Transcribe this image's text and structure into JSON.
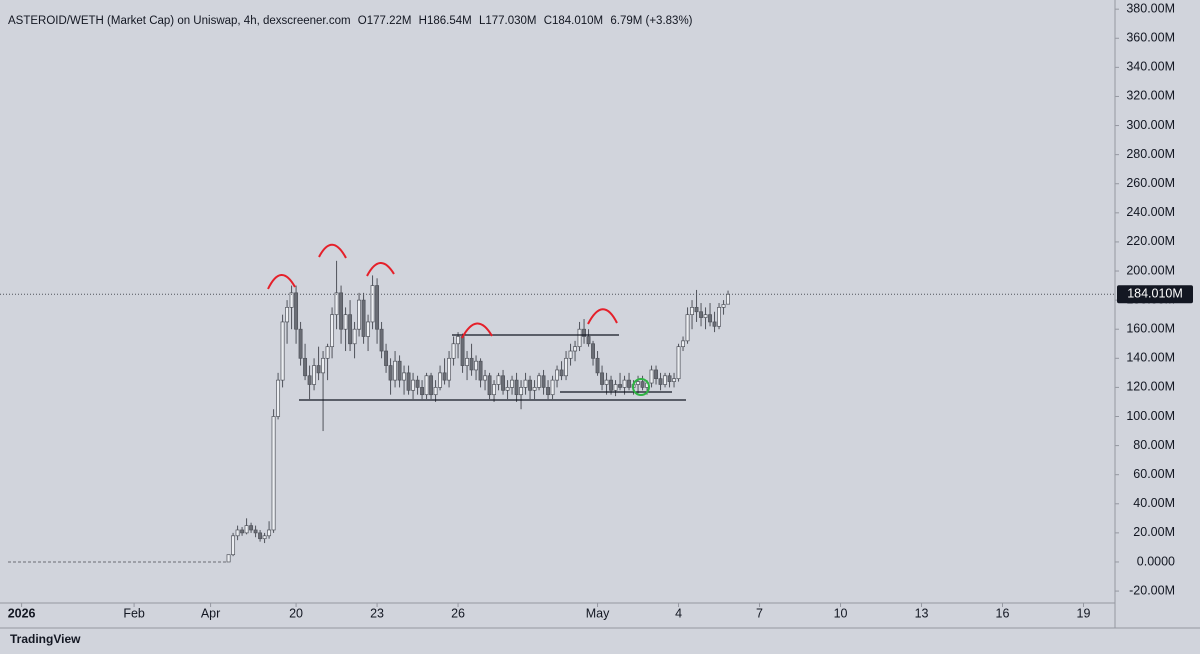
{
  "chart_data": {
    "type": "candlestick",
    "title": "ASTEROID/WETH (Market Cap) on Uniswap, 4h, dexscreener.com",
    "legend_items": [
      "O177.22M",
      "H186.54M",
      "L177.030M",
      "C184.010M",
      "6.79M (+3.83%)"
    ],
    "brand": "TradingView",
    "up_color": "#eceef2",
    "down_color": "#6a6d75",
    "wick_color": "#50535b",
    "last_price": 184.01,
    "last_price_label": "184.010M",
    "xlim": [
      -1.8,
      246
    ],
    "xticks": [
      {
        "value": 3,
        "label": "2026"
      },
      {
        "value": 28,
        "label": "Feb"
      },
      {
        "value": 45,
        "label": "Apr"
      },
      {
        "value": 64,
        "label": "20"
      },
      {
        "value": 82,
        "label": "23"
      },
      {
        "value": 100,
        "label": "26"
      },
      {
        "value": 131,
        "label": "May"
      },
      {
        "value": 149,
        "label": "4"
      },
      {
        "value": 167,
        "label": "7"
      },
      {
        "value": 185,
        "label": "10"
      },
      {
        "value": 203,
        "label": "13"
      },
      {
        "value": 221,
        "label": "16"
      },
      {
        "value": 239,
        "label": "19"
      }
    ],
    "ylim": [
      -28.2,
      386.3
    ],
    "yticks": [
      {
        "value": -20,
        "label": "-20.00M"
      },
      {
        "value": 0,
        "label": "0.0000"
      },
      {
        "value": 20,
        "label": "20.00M"
      },
      {
        "value": 40,
        "label": "40.00M"
      },
      {
        "value": 60,
        "label": "60.00M"
      },
      {
        "value": 80,
        "label": "80.00M"
      },
      {
        "value": 100,
        "label": "100.00M"
      },
      {
        "value": 120,
        "label": "120.00M"
      },
      {
        "value": 140,
        "label": "140.00M"
      },
      {
        "value": 160,
        "label": "160.00M"
      },
      {
        "value": 180,
        "label": "180.00M"
      },
      {
        "value": 200,
        "label": "200.00M"
      },
      {
        "value": 220,
        "label": "220.00M"
      },
      {
        "value": 240,
        "label": "240.00M"
      },
      {
        "value": 260,
        "label": "260.00M"
      },
      {
        "value": 280,
        "label": "280.00M"
      },
      {
        "value": 300,
        "label": "300.00M"
      },
      {
        "value": 320,
        "label": "320.00M"
      },
      {
        "value": 340,
        "label": "340.00M"
      },
      {
        "value": 360,
        "label": "360.00M"
      },
      {
        "value": 380,
        "label": "380.00M"
      }
    ],
    "x": [
      49,
      50,
      51,
      52,
      53,
      54,
      55,
      56,
      57,
      58,
      59,
      60,
      61,
      62,
      63,
      64,
      65,
      66,
      67,
      68,
      69,
      70,
      71,
      72,
      73,
      74,
      75,
      76,
      77,
      78,
      79,
      80,
      81,
      82,
      83,
      84,
      85,
      86,
      87,
      88,
      89,
      90,
      91,
      92,
      93,
      94,
      95,
      96,
      97,
      98,
      99,
      100,
      101,
      102,
      103,
      104,
      105,
      106,
      107,
      108,
      109,
      110,
      111,
      112,
      113,
      114,
      115,
      116,
      117,
      118,
      119,
      120,
      121,
      122,
      123,
      124,
      125,
      126,
      127,
      128,
      129,
      130,
      131,
      132,
      133,
      134,
      135,
      136,
      137,
      138,
      139,
      140,
      141,
      142,
      143,
      144,
      145,
      146,
      147,
      148,
      149,
      150,
      151,
      152,
      153,
      154,
      155,
      156,
      157,
      158,
      159,
      160
    ],
    "candles": [
      [
        0,
        5,
        0,
        5
      ],
      [
        5,
        20,
        4,
        18
      ],
      [
        18,
        25,
        15,
        22
      ],
      [
        22,
        24,
        18,
        20
      ],
      [
        20,
        30,
        19,
        25
      ],
      [
        25,
        27,
        20,
        22
      ],
      [
        22,
        25,
        17,
        20
      ],
      [
        20,
        22,
        14,
        16
      ],
      [
        16,
        20,
        13,
        18
      ],
      [
        18,
        28,
        16,
        22
      ],
      [
        22,
        105,
        20,
        100
      ],
      [
        100,
        130,
        98,
        125
      ],
      [
        125,
        170,
        120,
        165
      ],
      [
        165,
        180,
        150,
        175
      ],
      [
        175,
        190,
        160,
        185
      ],
      [
        185,
        190,
        150,
        160
      ],
      [
        160,
        165,
        135,
        140
      ],
      [
        140,
        150,
        125,
        128
      ],
      [
        128,
        135,
        112,
        122
      ],
      [
        122,
        140,
        118,
        135
      ],
      [
        135,
        148,
        125,
        130
      ],
      [
        130,
        145,
        90,
        140
      ],
      [
        140,
        150,
        125,
        148
      ],
      [
        148,
        175,
        140,
        170
      ],
      [
        170,
        207,
        160,
        185
      ],
      [
        185,
        190,
        150,
        160
      ],
      [
        160,
        175,
        145,
        170
      ],
      [
        170,
        180,
        145,
        150
      ],
      [
        150,
        165,
        140,
        160
      ],
      [
        160,
        185,
        155,
        180
      ],
      [
        180,
        185,
        150,
        155
      ],
      [
        155,
        170,
        145,
        165
      ],
      [
        165,
        197,
        160,
        190
      ],
      [
        190,
        195,
        150,
        160
      ],
      [
        160,
        165,
        140,
        145
      ],
      [
        145,
        150,
        130,
        135
      ],
      [
        135,
        140,
        115,
        125
      ],
      [
        125,
        145,
        120,
        138
      ],
      [
        138,
        142,
        120,
        125
      ],
      [
        125,
        135,
        115,
        130
      ],
      [
        130,
        135,
        115,
        118
      ],
      [
        118,
        130,
        112,
        125
      ],
      [
        125,
        128,
        115,
        120
      ],
      [
        120,
        125,
        112,
        115
      ],
      [
        115,
        130,
        112,
        128
      ],
      [
        128,
        130,
        112,
        115
      ],
      [
        115,
        125,
        110,
        120
      ],
      [
        120,
        135,
        118,
        130
      ],
      [
        130,
        140,
        122,
        125
      ],
      [
        125,
        145,
        120,
        140
      ],
      [
        140,
        155,
        135,
        150
      ],
      [
        150,
        158,
        140,
        155
      ],
      [
        155,
        157,
        130,
        135
      ],
      [
        135,
        145,
        125,
        140
      ],
      [
        140,
        150,
        128,
        132
      ],
      [
        132,
        142,
        125,
        138
      ],
      [
        138,
        140,
        120,
        125
      ],
      [
        125,
        132,
        118,
        128
      ],
      [
        128,
        130,
        112,
        115
      ],
      [
        115,
        125,
        110,
        122
      ],
      [
        122,
        130,
        118,
        128
      ],
      [
        128,
        132,
        115,
        118
      ],
      [
        118,
        125,
        112,
        120
      ],
      [
        120,
        128,
        115,
        125
      ],
      [
        125,
        130,
        110,
        115
      ],
      [
        115,
        125,
        105,
        120
      ],
      [
        120,
        130,
        115,
        125
      ],
      [
        125,
        128,
        112,
        118
      ],
      [
        118,
        125,
        112,
        120
      ],
      [
        120,
        130,
        118,
        128
      ],
      [
        128,
        132,
        115,
        120
      ],
      [
        120,
        125,
        112,
        115
      ],
      [
        115,
        128,
        112,
        125
      ],
      [
        125,
        135,
        120,
        132
      ],
      [
        132,
        138,
        125,
        128
      ],
      [
        128,
        145,
        125,
        140
      ],
      [
        140,
        150,
        135,
        145
      ],
      [
        145,
        152,
        138,
        148
      ],
      [
        148,
        165,
        145,
        160
      ],
      [
        160,
        167,
        150,
        155
      ],
      [
        155,
        160,
        148,
        150
      ],
      [
        150,
        152,
        135,
        140
      ],
      [
        140,
        145,
        128,
        130
      ],
      [
        130,
        135,
        118,
        122
      ],
      [
        122,
        130,
        115,
        125
      ],
      [
        125,
        128,
        115,
        118
      ],
      [
        118,
        125,
        114,
        122
      ],
      [
        122,
        130,
        118,
        120
      ],
      [
        120,
        128,
        115,
        125
      ],
      [
        125,
        130,
        118,
        120
      ],
      [
        120,
        125,
        115,
        122
      ],
      [
        122,
        128,
        116,
        124
      ],
      [
        124,
        128,
        118,
        120
      ],
      [
        120,
        125,
        115,
        123
      ],
      [
        123,
        135,
        120,
        132
      ],
      [
        132,
        135,
        122,
        126
      ],
      [
        126,
        130,
        118,
        122
      ],
      [
        122,
        130,
        120,
        128
      ],
      [
        128,
        130,
        120,
        124
      ],
      [
        124,
        130,
        120,
        126
      ],
      [
        126,
        150,
        124,
        148
      ],
      [
        148,
        155,
        145,
        152
      ],
      [
        152,
        175,
        150,
        170
      ],
      [
        170,
        180,
        160,
        175
      ],
      [
        175,
        187,
        165,
        172
      ],
      [
        172,
        178,
        162,
        168
      ],
      [
        168,
        175,
        160,
        170
      ],
      [
        170,
        178,
        162,
        165
      ],
      [
        165,
        172,
        158,
        162
      ],
      [
        162,
        178,
        160,
        175
      ],
      [
        175,
        180,
        170,
        177
      ],
      [
        177.22,
        186.54,
        177.03,
        184.01
      ]
    ]
  }
}
